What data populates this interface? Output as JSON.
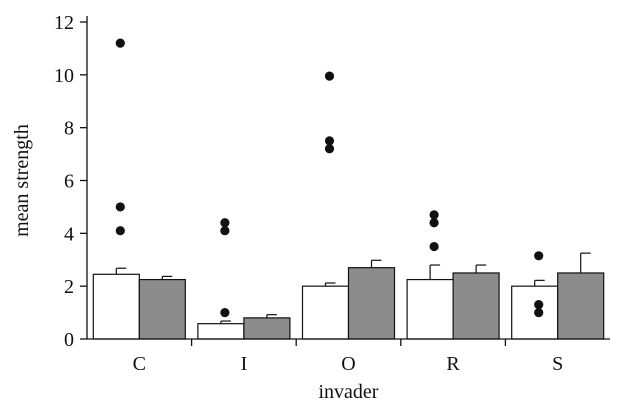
{
  "chart_data": {
    "type": "bar",
    "title": "",
    "xlabel": "invader",
    "ylabel": "mean strength",
    "ylim": [
      0,
      12
    ],
    "yticks": [
      0,
      2,
      4,
      6,
      8,
      10,
      12
    ],
    "grid": false,
    "legend": "none",
    "categories": [
      "C",
      "I",
      "O",
      "R",
      "S"
    ],
    "series": [
      {
        "fill": "#ffffff",
        "values": [
          2.45,
          0.58,
          2.0,
          2.25,
          2.0
        ],
        "error_upper": [
          2.68,
          0.68,
          2.12,
          2.8,
          2.22
        ]
      },
      {
        "fill": "#8c8c8c",
        "values": [
          2.25,
          0.8,
          2.7,
          2.5,
          2.5
        ],
        "error_upper": [
          2.37,
          0.92,
          2.98,
          2.8,
          3.25
        ]
      }
    ],
    "outliers": [
      {
        "category": "C",
        "values": [
          11.2,
          5.0,
          4.1
        ]
      },
      {
        "category": "I",
        "values": [
          4.4,
          4.1,
          1.0
        ]
      },
      {
        "category": "O",
        "values": [
          9.95,
          7.5,
          7.2
        ]
      },
      {
        "category": "R",
        "values": [
          4.7,
          4.4,
          3.5
        ]
      },
      {
        "category": "S",
        "values": [
          3.15,
          1.3,
          1.0
        ]
      }
    ],
    "colors": {
      "axis": "#111111",
      "bar_edge": "#111111",
      "outlier": "#111111"
    }
  }
}
